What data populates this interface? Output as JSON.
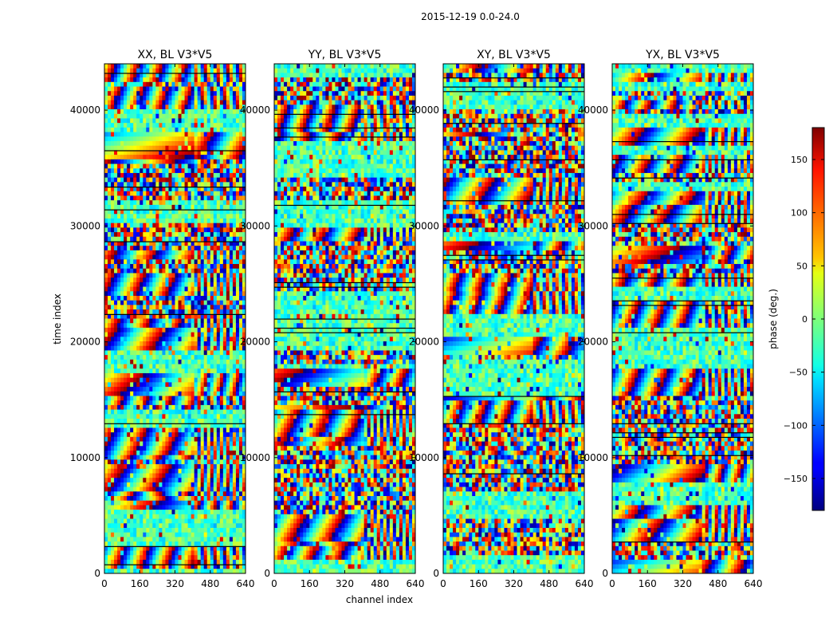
{
  "chart_data": {
    "type": "heatmap",
    "suptitle": "2015-12-19 0.0-24.0",
    "panels": [
      {
        "title": "XX, BL V3*V5"
      },
      {
        "title": "YY, BL V3*V5"
      },
      {
        "title": "XY, BL V3*V5"
      },
      {
        "title": "YX, BL V3*V5"
      }
    ],
    "xlabel": "channel index",
    "ylabel": "time index",
    "xlim": [
      0,
      640
    ],
    "ylim": [
      0,
      44000
    ],
    "xticks": [
      0,
      160,
      320,
      480,
      640
    ],
    "yticks": [
      0,
      10000,
      20000,
      30000,
      40000
    ],
    "colorbar": {
      "label": "phase (deg.)",
      "range": [
        -180,
        180
      ],
      "ticks": [
        150,
        100,
        50,
        0,
        -50,
        -100,
        -150
      ],
      "tick_labels": [
        "150",
        "100",
        "50",
        "0",
        "−50",
        "−100",
        "−150"
      ],
      "colormap": "jet"
    }
  }
}
